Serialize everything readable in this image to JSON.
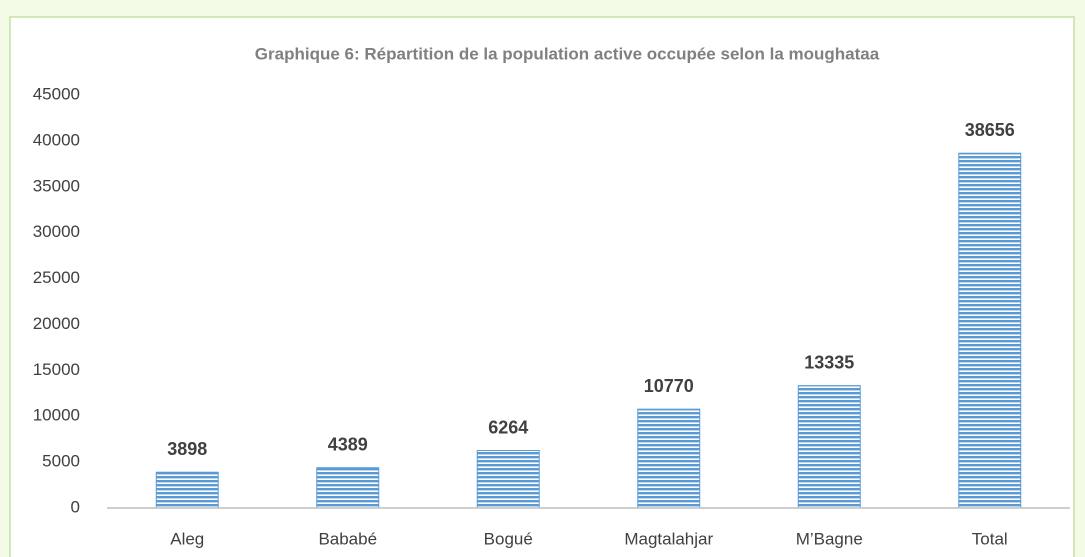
{
  "chart_data": {
    "type": "bar",
    "title": "Graphique 6: Répartition de la population active occupée selon la moughataa",
    "categories": [
      "Aleg",
      "Bababé",
      "Bogué",
      "Magtalahjar",
      "M’Bagne",
      "Total"
    ],
    "values": [
      3898,
      4389,
      6264,
      10770,
      13335,
      38656
    ],
    "color": "#5b9bd5",
    "ylim": [
      0,
      45000
    ],
    "yticks": [
      0,
      5000,
      10000,
      15000,
      20000,
      25000,
      30000,
      35000,
      40000,
      45000
    ],
    "grid": false
  }
}
